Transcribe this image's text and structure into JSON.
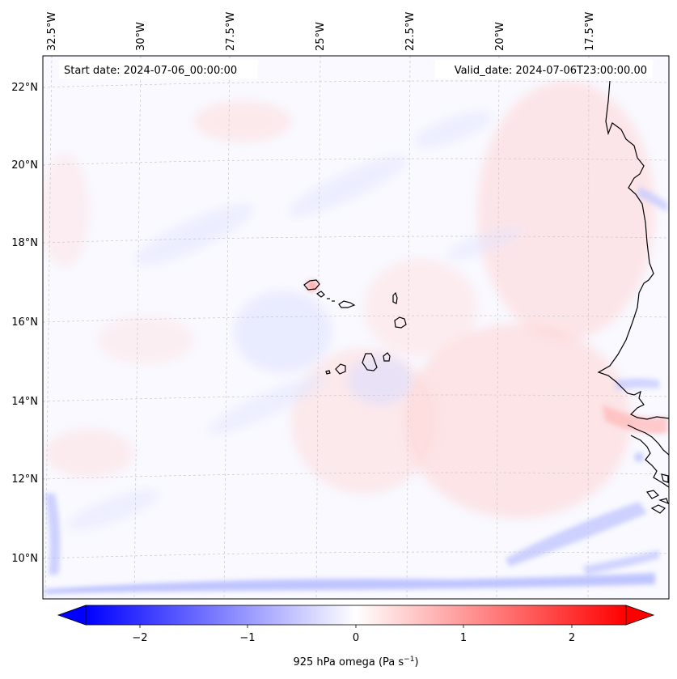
{
  "map": {
    "start_date": "Start date: 2024-07-06_00:00:00",
    "valid_date": "Valid_date: 2024-07-06T23:00:00.00",
    "lon_labels": [
      "32.5°W",
      "30°W",
      "27.5°W",
      "25°W",
      "22.5°W",
      "20°W",
      "17.5°W"
    ],
    "lat_labels": [
      "22°N",
      "20°N",
      "18°N",
      "16°N",
      "14°N",
      "12°N",
      "10°N"
    ]
  },
  "colorbar": {
    "ticks": [
      "−2",
      "−1",
      "0",
      "1",
      "2"
    ],
    "label_main": "925 hPa omega (Pa s",
    "label_exp": "−1",
    "label_end": ")",
    "negative_color": "#0000ff",
    "positive_color": "#ff0000"
  },
  "colors": {
    "coast": "#000000",
    "grid": "#c8c8c8",
    "background": "#f9f9ff"
  }
}
